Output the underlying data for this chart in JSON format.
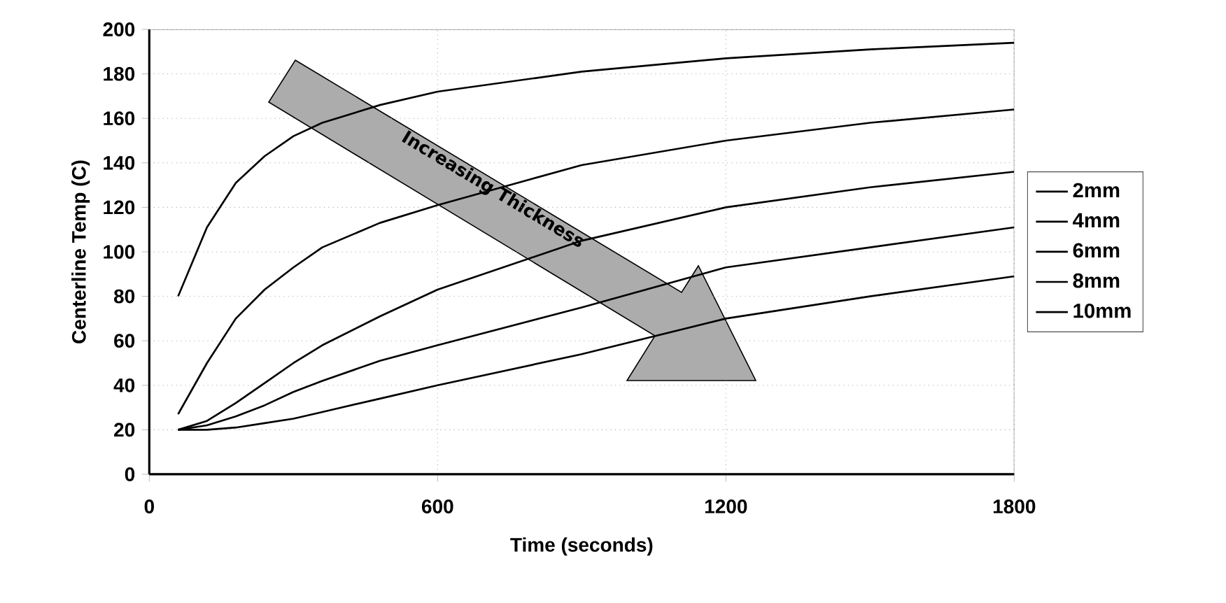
{
  "chart_data": {
    "type": "line",
    "xlabel": "Time (seconds)",
    "ylabel": "Centerline Temp (C)",
    "x": [
      60,
      120,
      180,
      240,
      300,
      360,
      480,
      600,
      900,
      1200,
      1500,
      1800
    ],
    "series": [
      {
        "name": "2mm",
        "color": "#000000",
        "values": [
          80,
          111,
          131,
          143,
          152,
          158,
          166,
          172,
          181,
          187,
          191,
          194
        ]
      },
      {
        "name": "4mm",
        "color": "#000000",
        "values": [
          27,
          50,
          70,
          83,
          93,
          102,
          113,
          121,
          139,
          150,
          158,
          164
        ]
      },
      {
        "name": "6mm",
        "color": "#000000",
        "values": [
          20,
          24,
          32,
          41,
          50,
          58,
          71,
          83,
          105,
          120,
          129,
          136
        ]
      },
      {
        "name": "8mm",
        "color": "#000000",
        "values": [
          20,
          22,
          26,
          31,
          37,
          42,
          51,
          58,
          75,
          93,
          102,
          111
        ]
      },
      {
        "name": "10mm",
        "color": "#000000",
        "values": [
          20,
          20,
          21,
          23,
          25,
          28,
          34,
          40,
          54,
          70,
          80,
          89
        ]
      }
    ],
    "xlim": [
      0,
      1800
    ],
    "xticks": [
      0,
      600,
      1200,
      1800
    ],
    "ylim": [
      0,
      200
    ],
    "yticks": [
      0,
      20,
      40,
      60,
      80,
      100,
      120,
      140,
      160,
      180,
      200
    ],
    "grid": true,
    "legend": "right",
    "marker": "none",
    "line_style": "solid",
    "annotations": [
      "Increasing Thickness"
    ]
  }
}
